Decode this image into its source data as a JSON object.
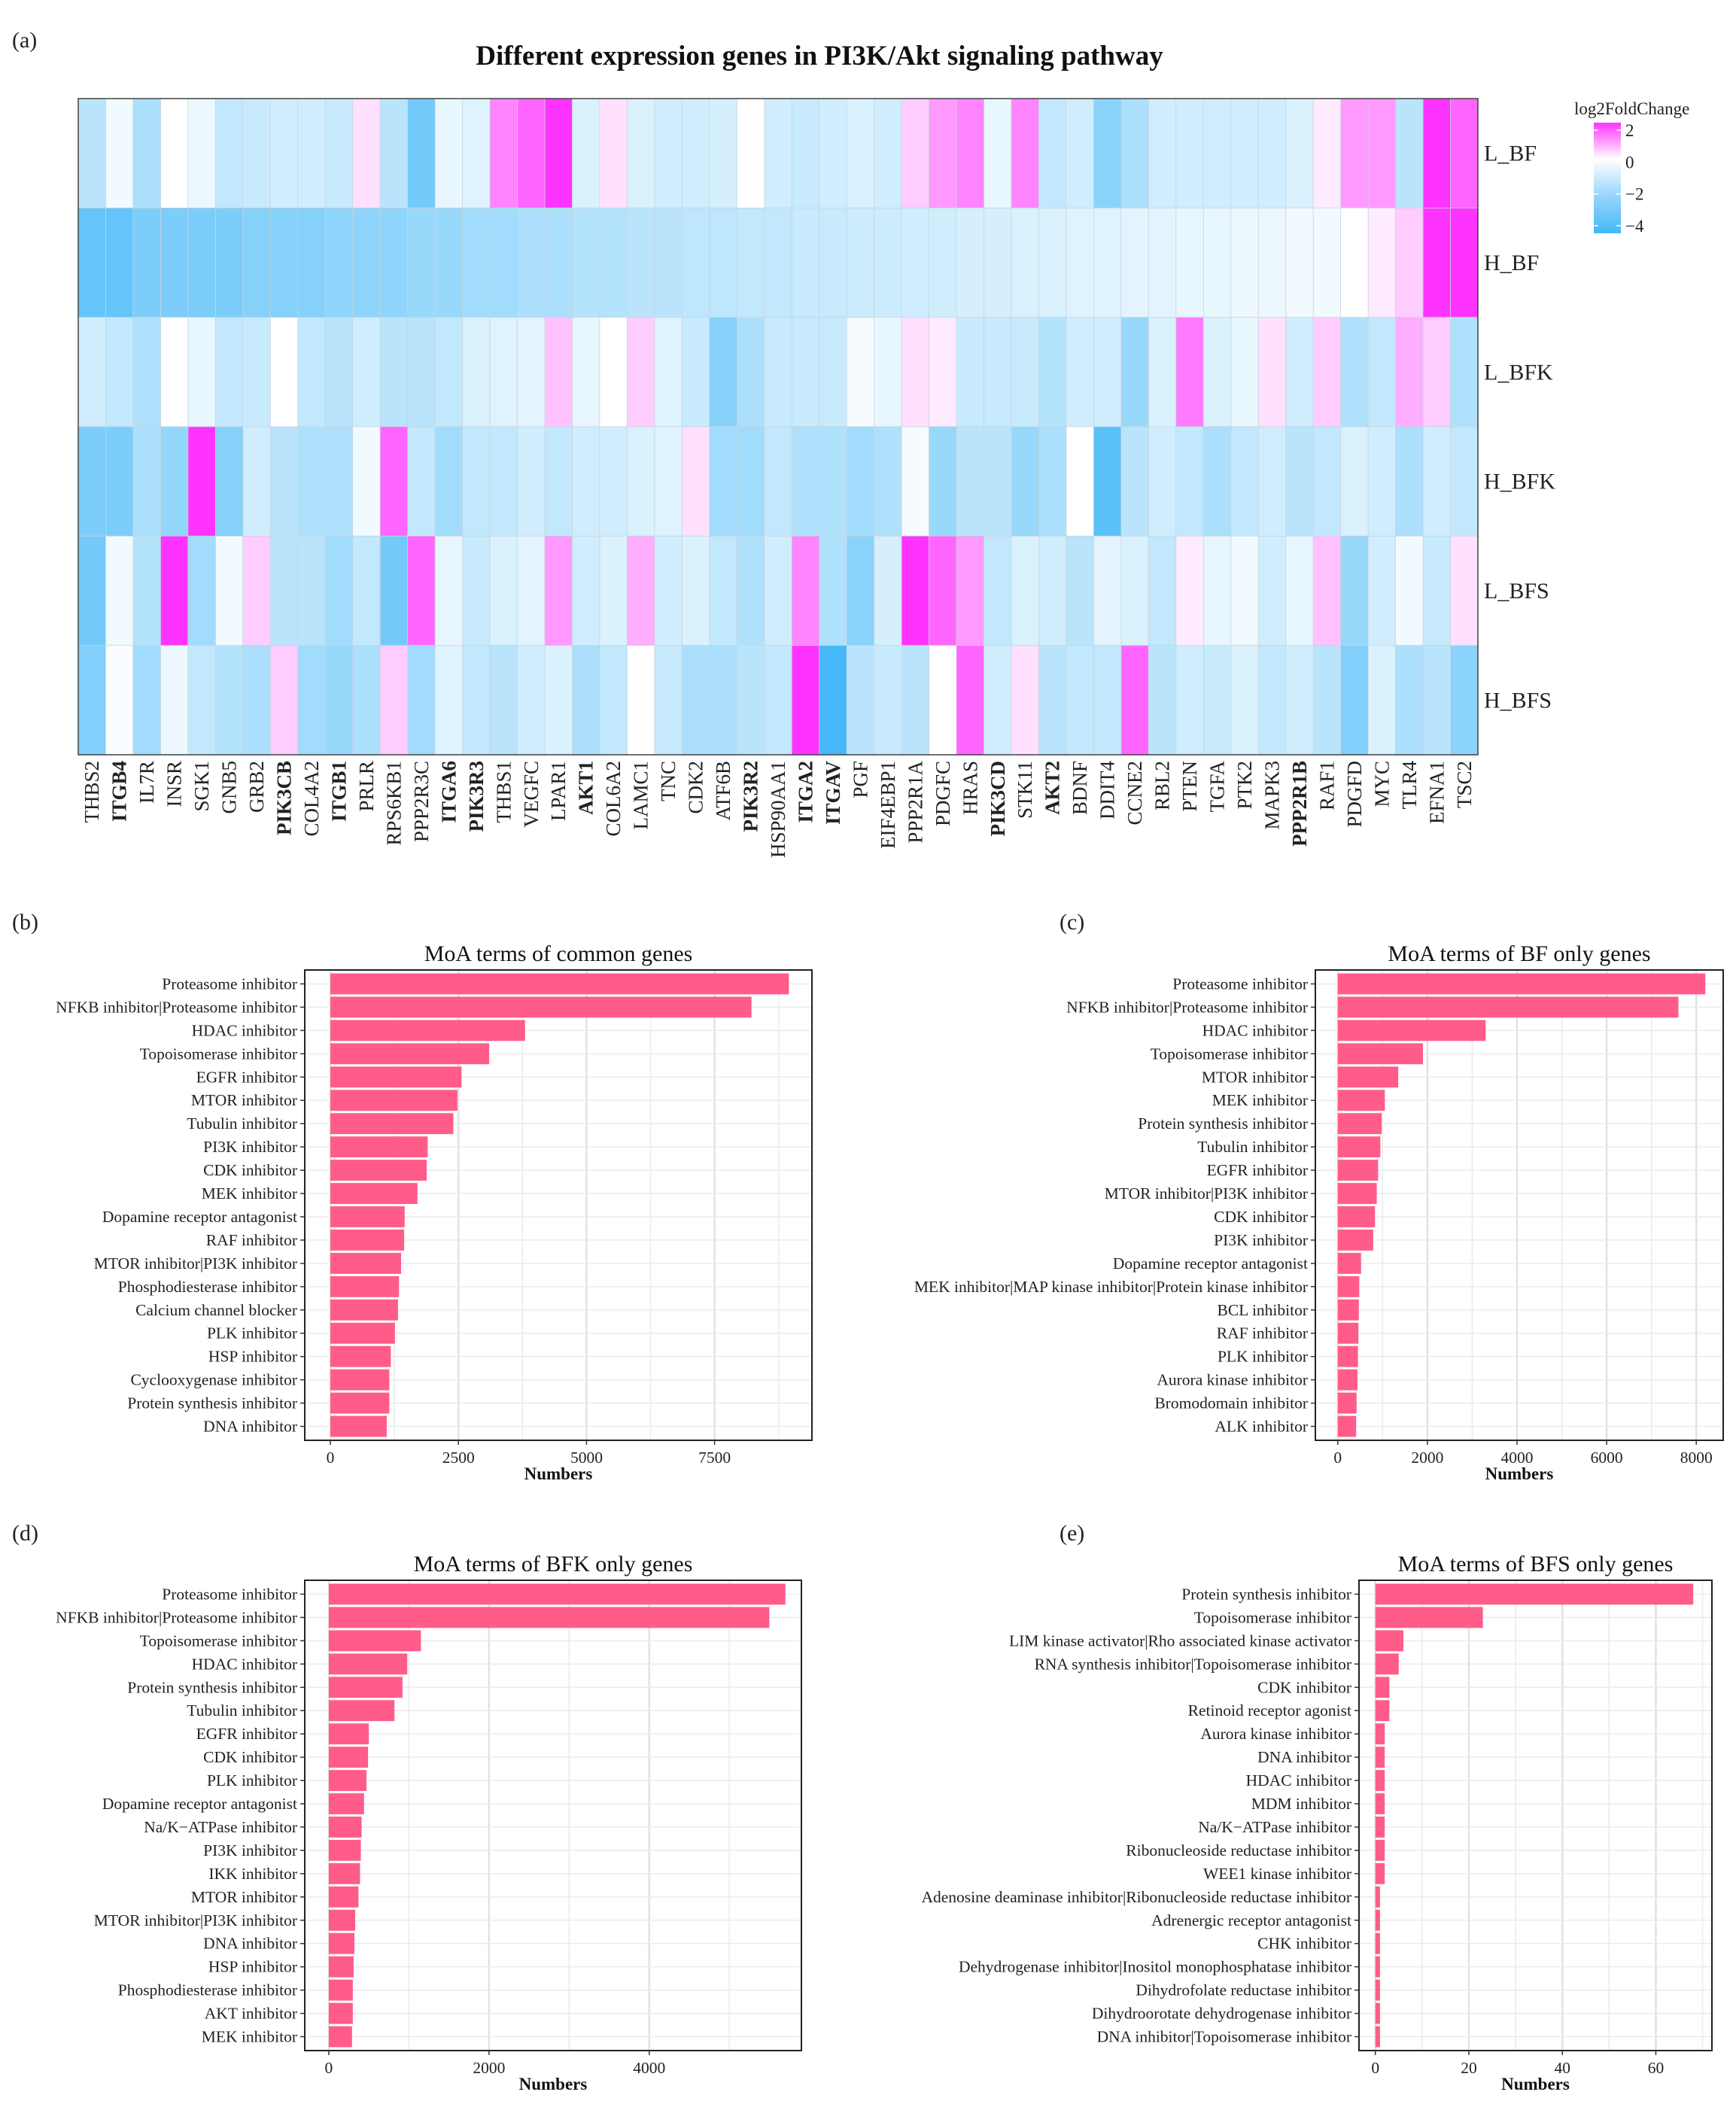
{
  "chart_data": [
    {
      "id": "a",
      "panel_label": "(a)",
      "type": "heatmap",
      "title": "Different expression genes in PI3K/Akt signaling pathway",
      "legend": {
        "title": "log2FoldChange",
        "ticks": [
          2,
          0,
          -2,
          -4
        ],
        "tick_labels": [
          "2",
          "0",
          "−2",
          "−4"
        ],
        "colors": {
          "high": "#ff33ff",
          "mid": "#ffffff",
          "low": "#44b8f8"
        }
      },
      "rows": [
        "L_BF",
        "H_BF",
        "L_BFK",
        "H_BFK",
        "L_BFS",
        "H_BFS"
      ],
      "cols": [
        "THBS2",
        "ITGB4",
        "IL7R",
        "INSR",
        "SGK1",
        "GNB5",
        "GRB2",
        "PIK3CB",
        "COL4A2",
        "ITGB1",
        "PRLR",
        "RPS6KB1",
        "PPP2R3C",
        "ITGA6",
        "PIK3R3",
        "THBS1",
        "VEGFC",
        "LPAR1",
        "AKT1",
        "COL6A2",
        "LAMC1",
        "TNC",
        "CDK2",
        "ATF6B",
        "PIK3R2",
        "HSP90AA1",
        "ITGA2",
        "ITGAV",
        "PGF",
        "EIF4EBP1",
        "PPP2R1A",
        "PDGFC",
        "HRAS",
        "PIK3CD",
        "STK11",
        "AKT2",
        "BDNF",
        "DDIT4",
        "CCNE2",
        "RBL2",
        "PTEN",
        "TGFA",
        "PTK2",
        "MAPK3",
        "PPP2R1B",
        "RAF1",
        "PDGFD",
        "MYC",
        "TLR4",
        "EFNA1",
        "TSC2"
      ],
      "bold_cols": [
        "ITGB4",
        "PIK3CB",
        "ITGB1",
        "ITGA6",
        "PIK3R3",
        "AKT1",
        "PIK3R2",
        "ITGA2",
        "ITGAV",
        "PIK3CD",
        "AKT2",
        "PPP2R1B"
      ],
      "values": [
        [
          -1.5,
          -0.3,
          -1.8,
          0,
          -0.4,
          -1.3,
          -1.2,
          -1.0,
          -1.0,
          -1.2,
          0.3,
          -1.5,
          -3.0,
          -0.5,
          -0.7,
          1.2,
          1.5,
          2.3,
          -0.8,
          0.3,
          -0.8,
          -1.0,
          -1.0,
          -0.9,
          0,
          -1.0,
          -1.2,
          -1.0,
          -0.8,
          -1.0,
          0.5,
          1.0,
          1.2,
          -0.5,
          1.2,
          -1.3,
          -1.0,
          -2.5,
          -1.8,
          -1.0,
          -1.0,
          -1.0,
          -1.0,
          -1.0,
          -0.8,
          0.2,
          1.0,
          1.0,
          -1.5,
          2.3,
          1.5
        ],
        [
          -3.3,
          -3.3,
          -2.8,
          -2.8,
          -2.8,
          -2.8,
          -2.6,
          -2.6,
          -2.6,
          -2.4,
          -2.4,
          -2.4,
          -2.2,
          -2.2,
          -2.0,
          -2.0,
          -1.8,
          -1.8,
          -1.6,
          -1.6,
          -1.5,
          -1.5,
          -1.4,
          -1.4,
          -1.3,
          -1.3,
          -1.2,
          -1.2,
          -1.1,
          -1.1,
          -1.0,
          -1.0,
          -0.9,
          -0.9,
          -0.8,
          -0.8,
          -0.7,
          -0.7,
          -0.6,
          -0.6,
          -0.5,
          -0.5,
          -0.4,
          -0.4,
          -0.3,
          -0.3,
          0,
          0.2,
          0.5,
          2.8,
          3.3
        ],
        [
          -1.0,
          -1.3,
          -1.7,
          0,
          -0.5,
          -1.3,
          -1.2,
          0,
          -1.3,
          -1.5,
          -1.0,
          -1.5,
          -1.5,
          -1.3,
          -0.8,
          -0.7,
          -0.6,
          0.6,
          -0.5,
          0,
          0.5,
          -0.7,
          -1.2,
          -2.6,
          -1.8,
          -1.2,
          -1.2,
          -1.2,
          -0.2,
          -0.5,
          0.3,
          0.2,
          -1.2,
          -1.2,
          -1.2,
          -1.6,
          -1.0,
          -1.0,
          -2.2,
          -0.8,
          1.3,
          -0.8,
          -0.5,
          0.3,
          -1.0,
          0.5,
          -1.7,
          -1.3,
          0.8,
          0.5,
          -1.7
        ],
        [
          -2.8,
          -2.8,
          -1.8,
          -2.3,
          3.0,
          -2.6,
          -1.0,
          -1.5,
          -1.7,
          -1.7,
          -0.3,
          1.5,
          -1.3,
          -2.0,
          -1.3,
          -1.3,
          -1.0,
          -1.3,
          -1.0,
          -1.0,
          -0.8,
          -0.7,
          0.3,
          -2.0,
          -2.0,
          -1.3,
          -1.7,
          -1.7,
          -2.0,
          -1.7,
          -0.2,
          -2.2,
          -1.5,
          -1.5,
          -2.2,
          -1.8,
          0,
          -3.5,
          -1.5,
          -1.0,
          -1.3,
          -1.8,
          -1.3,
          -1.0,
          -1.5,
          -1.3,
          -0.8,
          -1.0,
          -1.8,
          -1.0,
          -1.3
        ],
        [
          -3.0,
          -0.3,
          -1.6,
          2.5,
          -2.0,
          -0.3,
          0.5,
          -1.5,
          -1.5,
          -2.0,
          -1.3,
          -3.0,
          1.5,
          -0.5,
          -1.2,
          -0.8,
          -0.6,
          1.0,
          -1.0,
          -0.8,
          0.8,
          -1.0,
          -0.8,
          -1.3,
          -1.7,
          -1.0,
          1.2,
          -1.7,
          -2.5,
          -0.9,
          3.2,
          1.5,
          1.0,
          -1.3,
          -0.8,
          -1.0,
          -1.5,
          -0.6,
          -0.8,
          -1.3,
          0.2,
          -0.5,
          -0.3,
          -1.0,
          -0.5,
          0.6,
          -2.2,
          -1.0,
          -0.3,
          -1.2,
          0.3
        ],
        [
          -2.7,
          -0.1,
          -2.0,
          -0.4,
          -1.3,
          -1.6,
          -1.8,
          0.5,
          -2.0,
          -2.2,
          -1.8,
          0.5,
          -2.0,
          -0.7,
          -1.3,
          -1.5,
          -1.0,
          -0.8,
          -1.8,
          -1.3,
          0,
          -1.2,
          -1.8,
          -1.8,
          -1.5,
          -1.3,
          2.3,
          -4.0,
          -1.5,
          -1.2,
          -1.5,
          0,
          1.5,
          -1.0,
          0.3,
          -1.5,
          -1.3,
          -1.3,
          1.5,
          -1.5,
          -1.0,
          -1.2,
          -0.8,
          -1.3,
          -1.0,
          -1.5,
          -2.7,
          -0.8,
          -1.8,
          -1.5,
          -2.5
        ]
      ]
    },
    {
      "id": "b",
      "panel_label": "(b)",
      "type": "bar",
      "orientation": "horizontal",
      "title": "MoA terms of common genes",
      "xlabel": "Numbers",
      "xlim": [
        -500,
        9400
      ],
      "xticks": [
        0,
        2500,
        5000,
        7500
      ],
      "categories": [
        "Proteasome inhibitor",
        "NFKB inhibitor|Proteasome inhibitor",
        "HDAC inhibitor",
        "Topoisomerase inhibitor",
        "EGFR inhibitor",
        "MTOR inhibitor",
        "Tubulin inhibitor",
        "PI3K inhibitor",
        "CDK inhibitor",
        "MEK inhibitor",
        "Dopamine receptor antagonist",
        "RAF inhibitor",
        "MTOR inhibitor|PI3K inhibitor",
        "Phosphodiesterase inhibitor",
        "Calcium channel blocker",
        "PLK inhibitor",
        "HSP inhibitor",
        "Cyclooxygenase inhibitor",
        "Protein synthesis inhibitor",
        "DNA inhibitor"
      ],
      "values": [
        8950,
        8220,
        3800,
        3100,
        2560,
        2480,
        2400,
        1900,
        1880,
        1700,
        1450,
        1440,
        1380,
        1340,
        1320,
        1260,
        1180,
        1150,
        1150,
        1100
      ],
      "bar_color": "#ff5c8a"
    },
    {
      "id": "c",
      "panel_label": "(c)",
      "type": "bar",
      "orientation": "horizontal",
      "title": "MoA terms of BF only genes",
      "xlabel": "Numbers",
      "xlim": [
        -500,
        8600
      ],
      "xticks": [
        0,
        2000,
        4000,
        6000,
        8000
      ],
      "categories": [
        "Proteasome inhibitor",
        "NFKB inhibitor|Proteasome inhibitor",
        "HDAC inhibitor",
        "Topoisomerase inhibitor",
        "MTOR inhibitor",
        "MEK inhibitor",
        "Protein synthesis inhibitor",
        "Tubulin inhibitor",
        "EGFR inhibitor",
        "MTOR inhibitor|PI3K inhibitor",
        "CDK inhibitor",
        "PI3K inhibitor",
        "Dopamine receptor antagonist",
        "MEK inhibitor|MAP kinase inhibitor|Protein kinase inhibitor",
        "BCL inhibitor",
        "RAF inhibitor",
        "PLK inhibitor",
        "Aurora kinase inhibitor",
        "Bromodomain inhibitor",
        "ALK inhibitor"
      ],
      "values": [
        8200,
        7600,
        3300,
        1900,
        1350,
        1050,
        980,
        950,
        900,
        870,
        830,
        790,
        520,
        480,
        470,
        460,
        450,
        440,
        420,
        410
      ],
      "bar_color": "#ff5c8a"
    },
    {
      "id": "d",
      "panel_label": "(d)",
      "type": "bar",
      "orientation": "horizontal",
      "title": "MoA terms of BFK only genes",
      "xlabel": "Numbers",
      "xlim": [
        -300,
        5900
      ],
      "xticks": [
        0,
        2000,
        4000
      ],
      "categories": [
        "Proteasome inhibitor",
        "NFKB inhibitor|Proteasome inhibitor",
        "Topoisomerase inhibitor",
        "HDAC inhibitor",
        "Protein synthesis inhibitor",
        "Tubulin inhibitor",
        "EGFR inhibitor",
        "CDK inhibitor",
        "PLK inhibitor",
        "Dopamine receptor antagonist",
        "Na/K−ATPase inhibitor",
        "PI3K inhibitor",
        "IKK inhibitor",
        "MTOR inhibitor",
        "MTOR inhibitor|PI3K inhibitor",
        "DNA inhibitor",
        "HSP inhibitor",
        "Phosphodiesterase inhibitor",
        "AKT inhibitor",
        "MEK inhibitor"
      ],
      "values": [
        5700,
        5500,
        1150,
        980,
        920,
        820,
        500,
        490,
        470,
        440,
        410,
        400,
        390,
        370,
        330,
        320,
        310,
        300,
        300,
        290
      ],
      "bar_color": "#ff5c8a"
    },
    {
      "id": "e",
      "panel_label": "(e)",
      "type": "bar",
      "orientation": "horizontal",
      "title": "MoA terms of BFS only genes",
      "xlabel": "Numbers",
      "xlim": [
        -3.5,
        72
      ],
      "xticks": [
        0,
        20,
        40,
        60
      ],
      "categories": [
        "Protein synthesis inhibitor",
        "Topoisomerase inhibitor",
        "LIM kinase activator|Rho associated kinase activator",
        "RNA synthesis inhibitor|Topoisomerase inhibitor",
        "CDK inhibitor",
        "Retinoid receptor agonist",
        "Aurora kinase inhibitor",
        "DNA inhibitor",
        "HDAC inhibitor",
        "MDM inhibitor",
        "Na/K−ATPase inhibitor",
        "Ribonucleoside reductase inhibitor",
        "WEE1 kinase inhibitor",
        "Adenosine deaminase inhibitor|Ribonucleoside reductase inhibitor",
        "Adrenergic receptor antagonist",
        "CHK inhibitor",
        "Dehydrogenase inhibitor|Inositol monophosphatase inhibitor",
        "Dihydrofolate reductase inhibitor",
        "Dihydroorotate dehydrogenase inhibitor",
        "DNA inhibitor|Topoisomerase inhibitor"
      ],
      "values": [
        68,
        23,
        6,
        5,
        3,
        3,
        2,
        2,
        2,
        2,
        2,
        2,
        2,
        1,
        1,
        1,
        1,
        1,
        1,
        1
      ],
      "bar_color": "#ff5c8a"
    }
  ]
}
